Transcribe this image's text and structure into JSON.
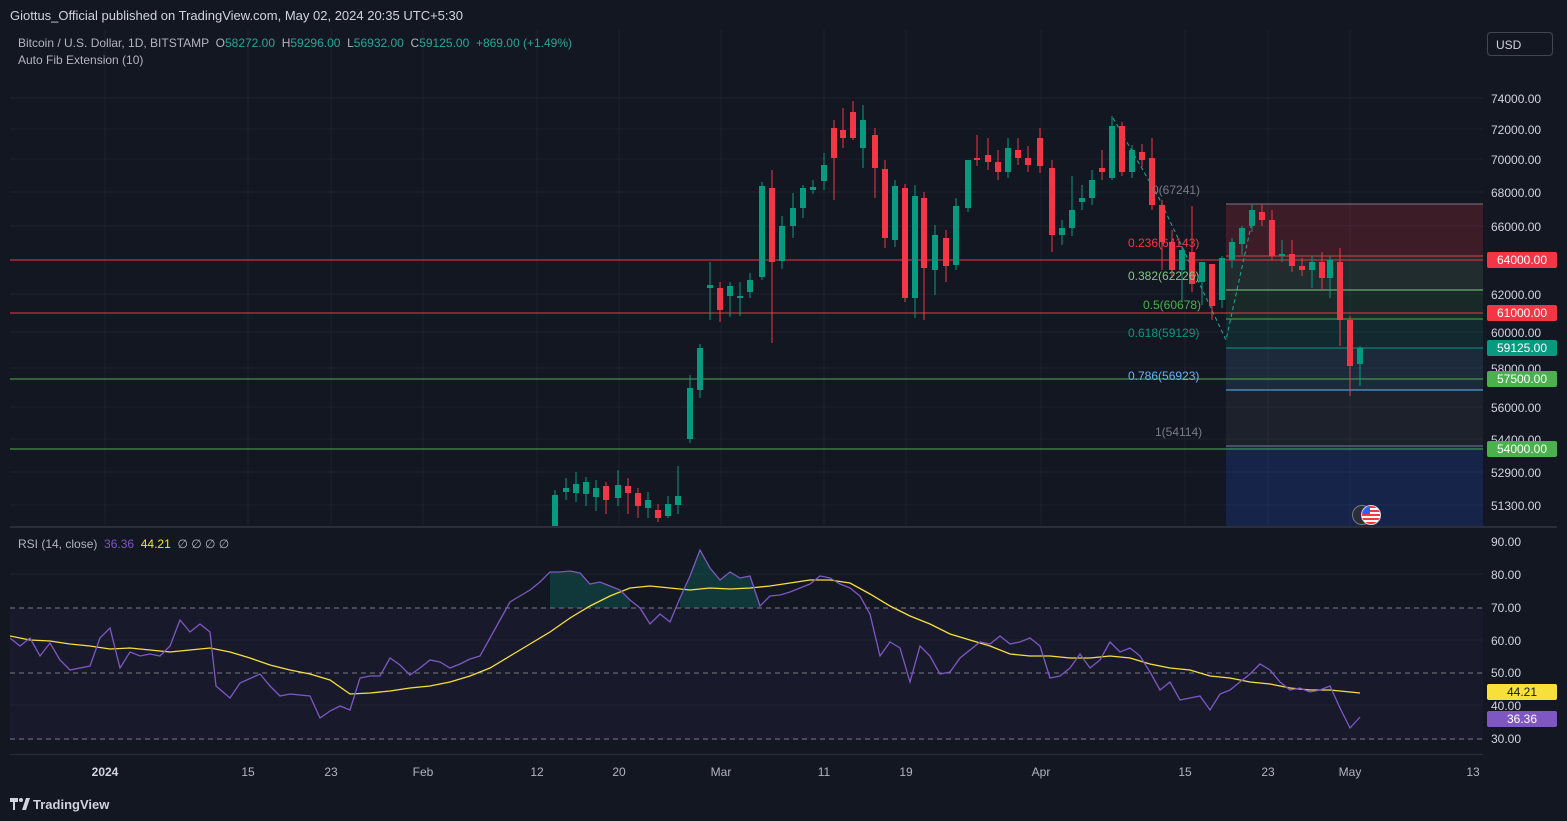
{
  "header": {
    "publisher_line": "Giottus_Official published on TradingView.com, May 02, 2024 20:35 UTC+5:30"
  },
  "legend": {
    "symbol": "Bitcoin / U.S. Dollar, 1D, BITSTAMP",
    "open_label": "O",
    "open_value": "58272.00",
    "high_label": "H",
    "high_value": "59296.00",
    "low_label": "L",
    "low_value": "56932.00",
    "close_label": "C",
    "close_value": "59125.00",
    "change": "+869.00 (+1.49%)",
    "indicator": "Auto Fib Extension (10)"
  },
  "currency_button": "USD",
  "fib_levels": [
    {
      "label": "0(67241)",
      "color": "#787b86"
    },
    {
      "label": "0.236(64143)",
      "color": "#f23645"
    },
    {
      "label": "0.382(62226)",
      "color": "#81c784"
    },
    {
      "label": "0.5(60678)",
      "color": "#4caf50"
    },
    {
      "label": "0.618(59129)",
      "color": "#089981"
    },
    {
      "label": "0.786(56923)",
      "color": "#64b5f6"
    },
    {
      "label": "1(54114)",
      "color": "#787b86"
    }
  ],
  "price_axis": [
    "74000.00",
    "72000.00",
    "70000.00",
    "68000.00",
    "66000.00",
    "62000.00",
    "60000.00",
    "58000.00",
    "56000.00",
    "54400.00",
    "52900.00",
    "51300.00"
  ],
  "price_tags": [
    {
      "text": "64000.00",
      "color": "#f23645"
    },
    {
      "text": "61000.00",
      "color": "#f23645"
    },
    {
      "text": "59125.00",
      "color": "#089981"
    },
    {
      "text": "57500.00",
      "color": "#4caf50"
    },
    {
      "text": "54000.00",
      "color": "#4caf50"
    }
  ],
  "rsi": {
    "label": "RSI (14, close)",
    "rsi_value": "36.36",
    "ma_value": "44.21",
    "extra": "∅ ∅ ∅ ∅",
    "axis": [
      "90.00",
      "80.00",
      "70.00",
      "60.00",
      "50.00",
      "40.00",
      "30.00"
    ],
    "rsi_color": "#7e57c2",
    "ma_color": "#f7e03b"
  },
  "time_axis": [
    "2024",
    "15",
    "23",
    "Feb",
    "12",
    "20",
    "Mar",
    "11",
    "19",
    "Apr",
    "15",
    "23",
    "May",
    "13"
  ],
  "footer": {
    "brand": "TradingView"
  },
  "colors": {
    "up": "#089981",
    "down": "#f23645",
    "background": "#131722"
  }
}
